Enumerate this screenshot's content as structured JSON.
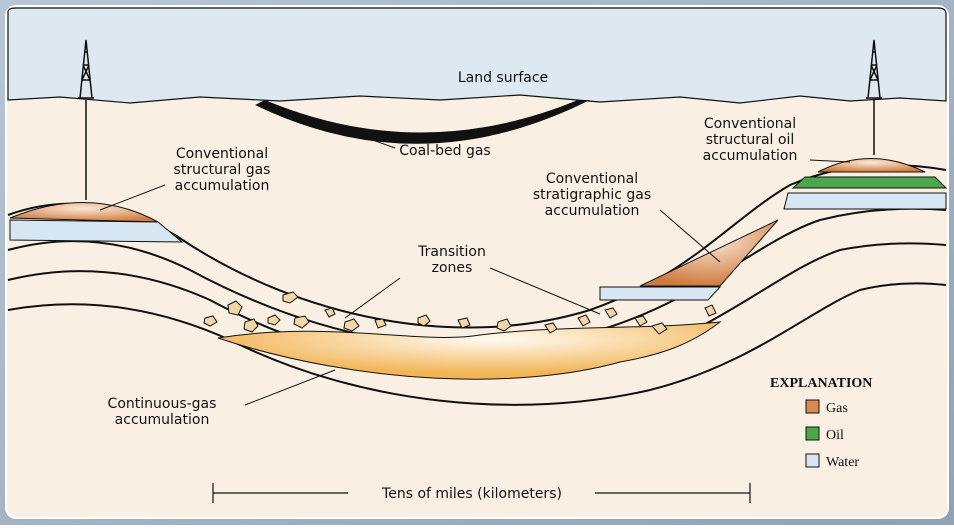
{
  "labels": {
    "land_surface": "Land surface",
    "coal_bed_gas": "Coal-bed gas",
    "conventional_structural_gas": [
      "Conventional",
      "structural gas",
      "accumulation"
    ],
    "conventional_structural_oil": [
      "Conventional",
      "structural oil",
      "accumulation"
    ],
    "conventional_stratigraphic_gas": [
      "Conventional",
      "stratigraphic gas",
      "accumulation"
    ],
    "transition_zones": [
      "Transition",
      "zones"
    ],
    "continuous_gas": [
      "Continuous-gas",
      "accumulation"
    ]
  },
  "explanation": {
    "title": "EXPLANATION",
    "items": [
      {
        "label": "Gas",
        "color": "#d98a52"
      },
      {
        "label": "Oil",
        "color": "#4aa84a"
      },
      {
        "label": "Water",
        "color": "#d7e6f3"
      }
    ]
  },
  "scale_bar": "Tens of miles (kilometers)"
}
